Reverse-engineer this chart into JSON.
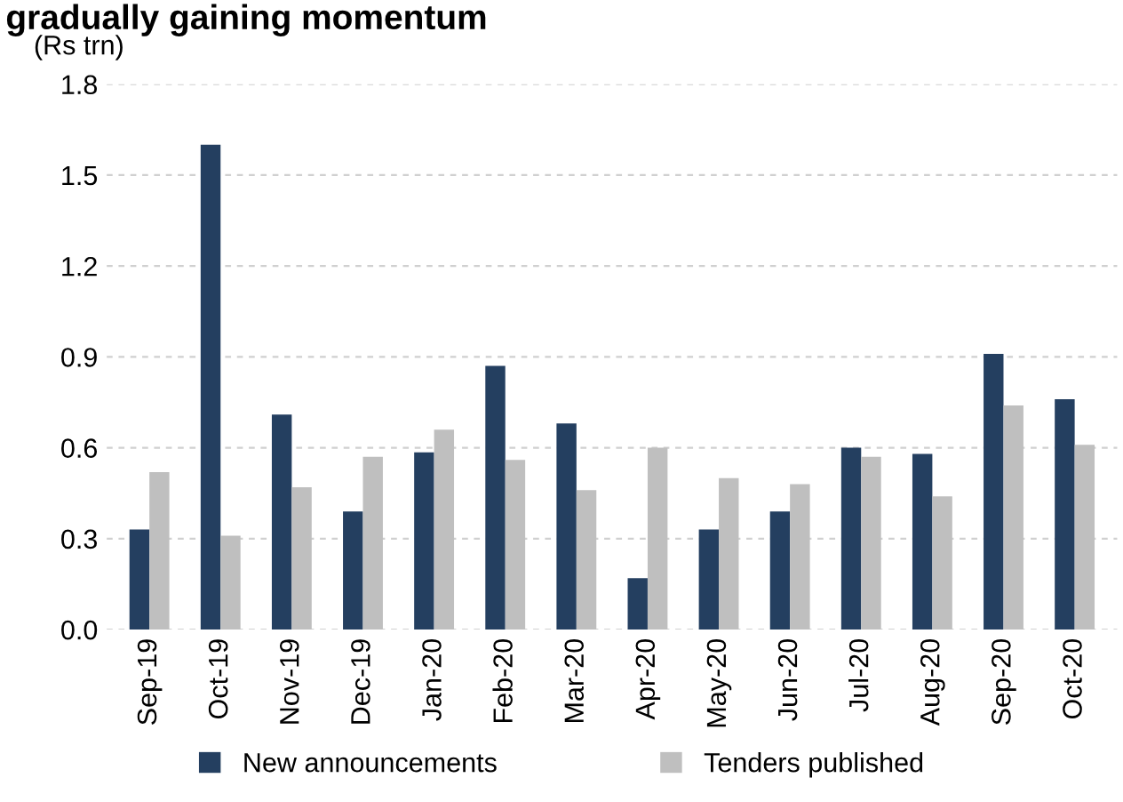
{
  "chart_data": {
    "type": "bar",
    "title": "gradually gaining momentum",
    "ylabel": "(Rs trn)",
    "categories": [
      "Sep-19",
      "Oct-19",
      "Nov-19",
      "Dec-19",
      "Jan-20",
      "Feb-20",
      "Mar-20",
      "Apr-20",
      "May-20",
      "Jun-20",
      "Jul-20",
      "Aug-20",
      "Sep-20",
      "Oct-20"
    ],
    "series": [
      {
        "name": "New announcements",
        "color": "#243f60",
        "values": [
          0.33,
          1.6,
          0.71,
          0.39,
          0.585,
          0.87,
          0.68,
          0.17,
          0.33,
          0.39,
          0.6,
          0.58,
          0.91,
          0.76
        ]
      },
      {
        "name": "Tenders published",
        "color": "#bfbfbf",
        "values": [
          0.52,
          0.31,
          0.47,
          0.57,
          0.66,
          0.56,
          0.46,
          0.6,
          0.5,
          0.48,
          0.57,
          0.44,
          0.74,
          0.61
        ]
      }
    ],
    "ylim": [
      0,
      1.8
    ],
    "yticks": [
      {
        "value": 0,
        "label": "0.0"
      },
      {
        "value": 0.3,
        "label": "0.3"
      },
      {
        "value": 0.6,
        "label": "0.6"
      },
      {
        "value": 0.9,
        "label": "0.9"
      },
      {
        "value": 1.2,
        "label": "1.2"
      },
      {
        "value": 1.5,
        "label": "1.5"
      },
      {
        "value": 1.8,
        "label": "1.8"
      }
    ],
    "grid": "y",
    "legend": "bottom"
  }
}
